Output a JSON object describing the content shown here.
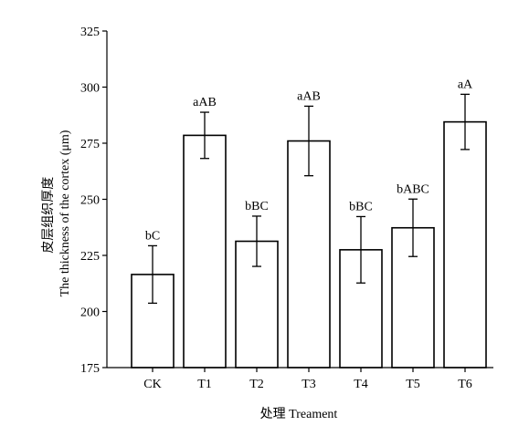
{
  "chart_data": {
    "type": "bar",
    "categories": [
      "CK",
      "T1",
      "T2",
      "T3",
      "T4",
      "T5",
      "T6"
    ],
    "values": [
      216.5,
      278.5,
      231.3,
      276.0,
      227.5,
      237.3,
      284.5
    ],
    "errors": [
      12.8,
      10.3,
      11.2,
      15.5,
      14.8,
      12.8,
      12.3
    ],
    "labels": [
      "bC",
      "aAB",
      "bBC",
      "aAB",
      "bBC",
      "bABC",
      "aA"
    ],
    "ylim": [
      175,
      325
    ],
    "yticks": [
      175,
      200,
      225,
      250,
      275,
      300,
      325
    ],
    "xlabel": "处理 Treament",
    "ylabel_cn": "皮层组织厚度",
    "ylabel_en": "The thickness of the cortex (μm)",
    "grid": false,
    "legend": "none"
  }
}
